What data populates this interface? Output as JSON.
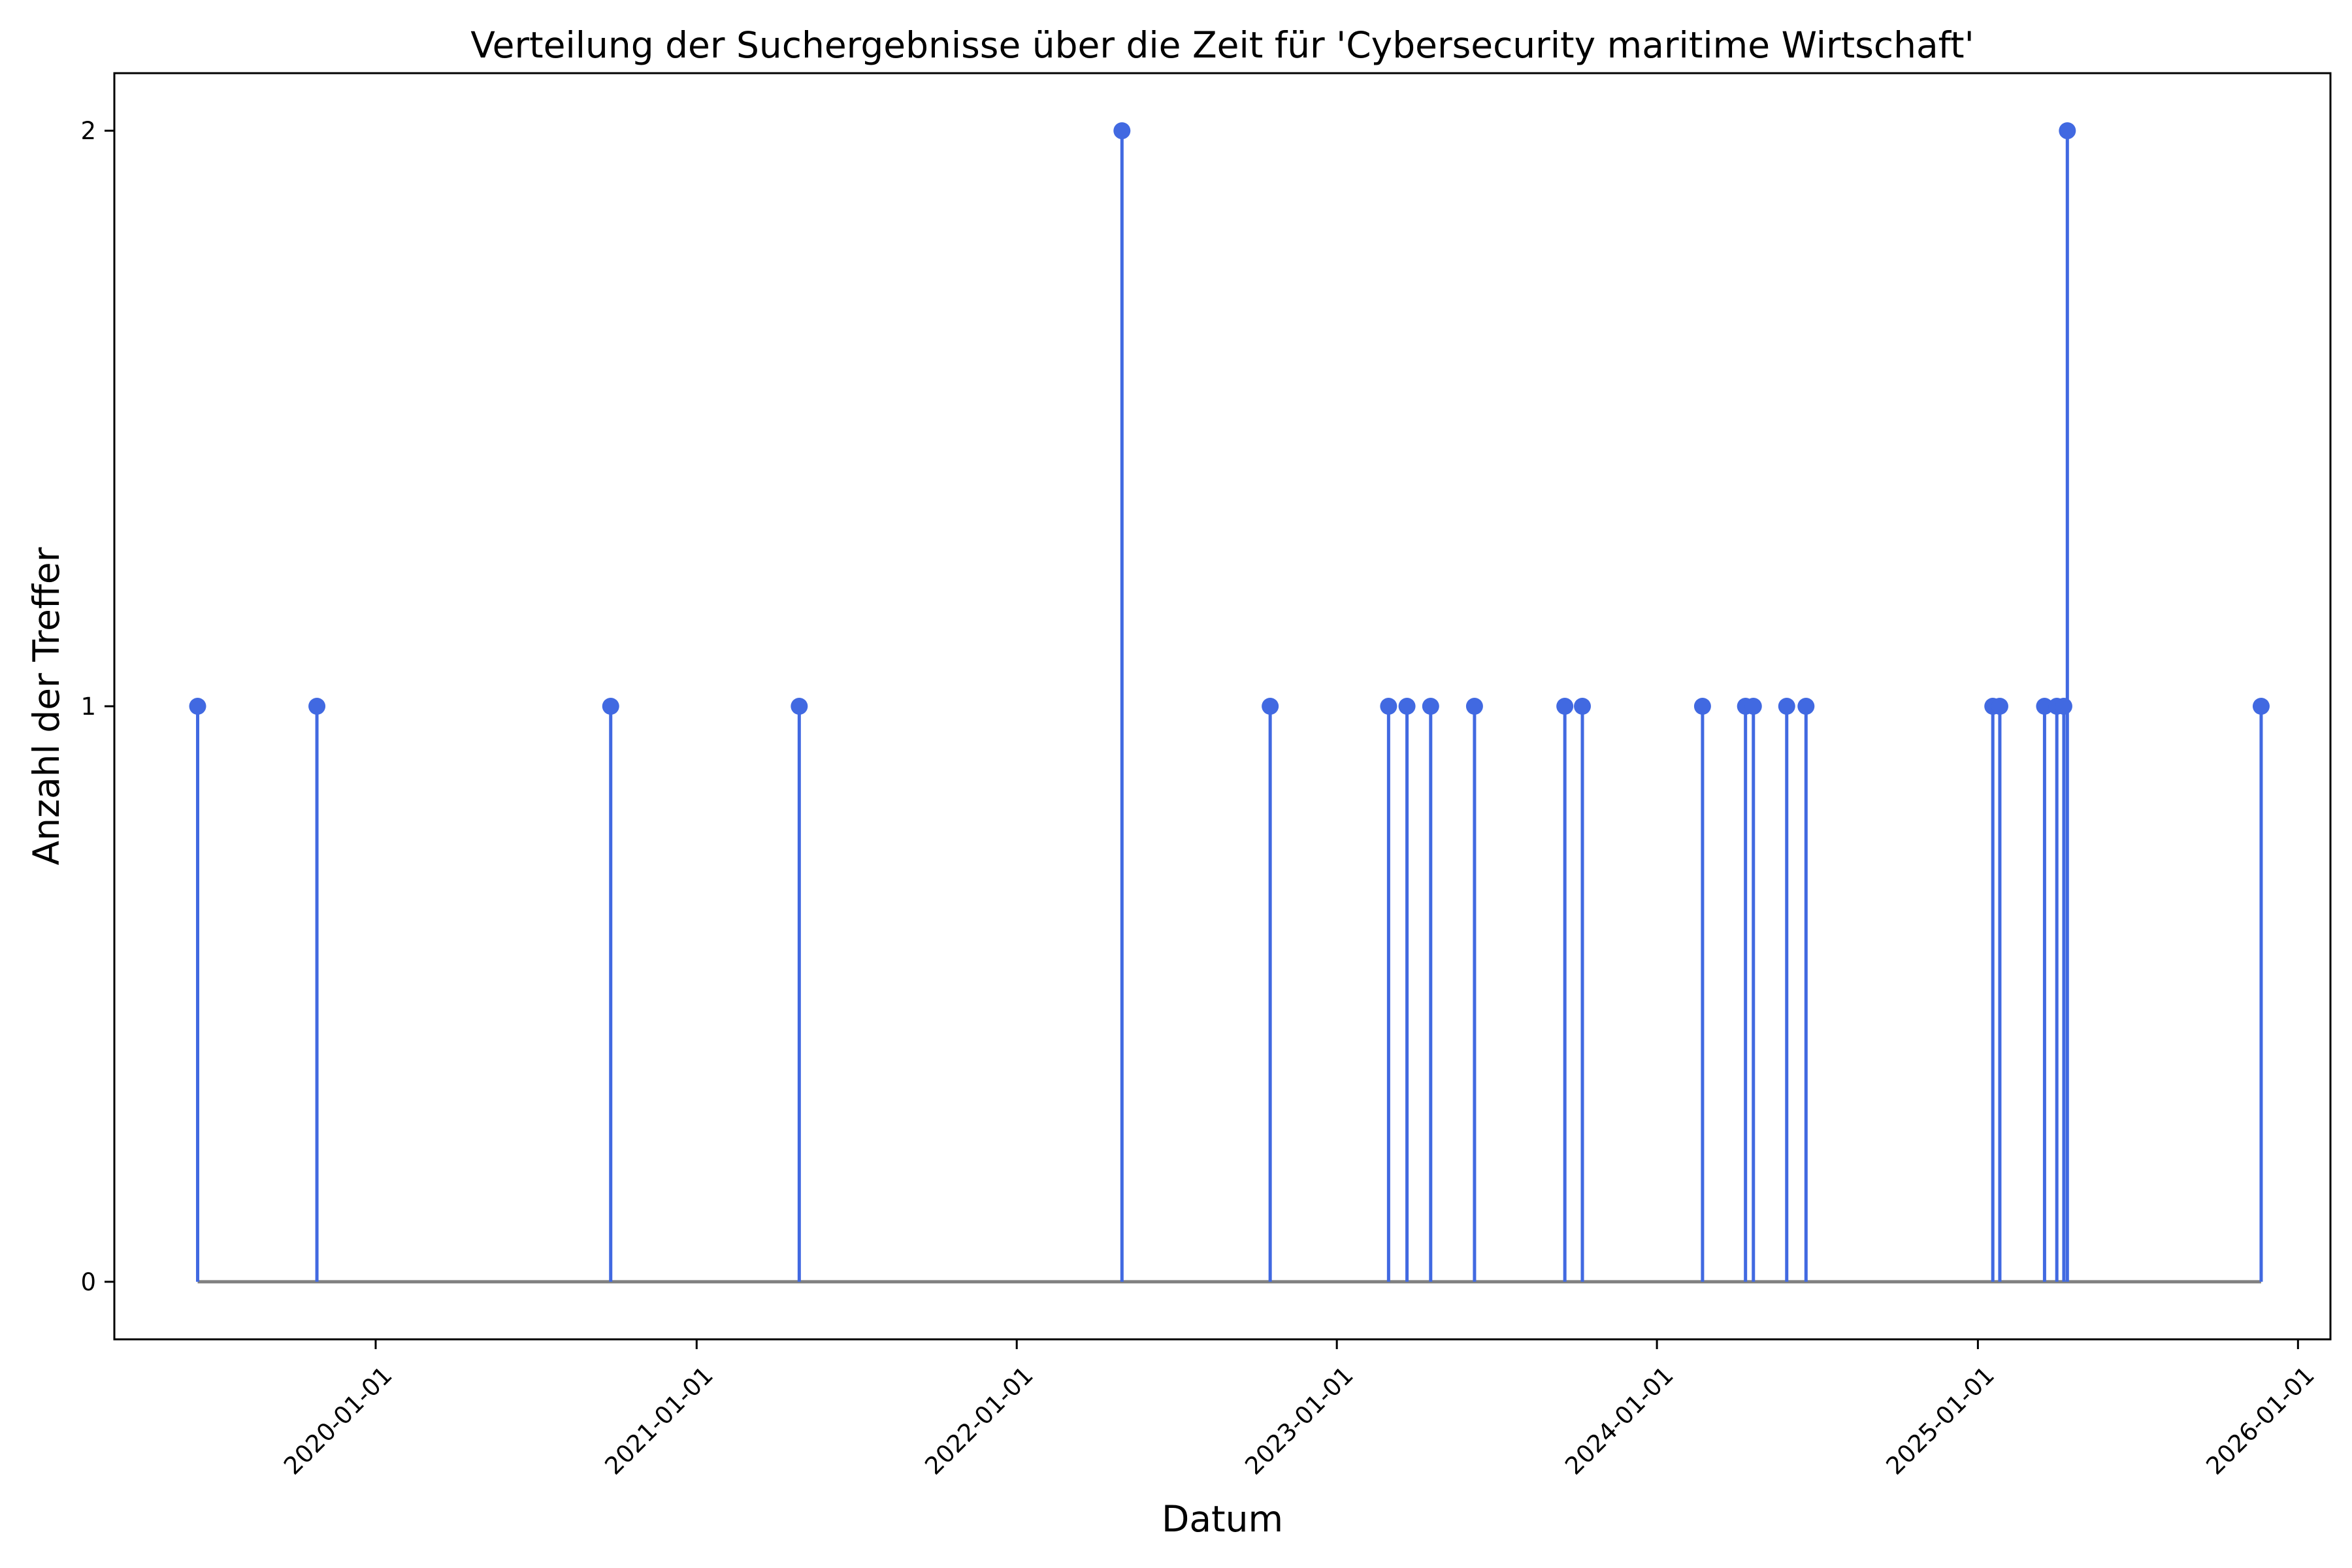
{
  "chart_data": {
    "type": "stem",
    "title": "Verteilung der Suchergebnisse über die Zeit für 'Cybersecurity maritime Wirtschaft'",
    "xlabel": "Datum",
    "ylabel": "Anzahl der Treffer",
    "xlim": [
      "2019-03-09",
      "2026-02-07"
    ],
    "ylim": [
      -0.1,
      2.1
    ],
    "x_ticks": [
      "2020-01-01",
      "2021-01-01",
      "2022-01-01",
      "2023-01-01",
      "2024-01-01",
      "2025-01-01",
      "2026-01-01"
    ],
    "y_ticks": [
      0,
      1,
      2
    ],
    "grid": false,
    "legend": "none",
    "series": [
      {
        "color": "#4169E1",
        "baseline_color": "#808080",
        "points": [
          {
            "date": "2019-06-12",
            "count": 1
          },
          {
            "date": "2019-10-26",
            "count": 1
          },
          {
            "date": "2020-09-25",
            "count": 1
          },
          {
            "date": "2021-04-28",
            "count": 1
          },
          {
            "date": "2022-05-01",
            "count": 2
          },
          {
            "date": "2022-10-17",
            "count": 1
          },
          {
            "date": "2023-03-01",
            "count": 1
          },
          {
            "date": "2023-03-22",
            "count": 1
          },
          {
            "date": "2023-04-18",
            "count": 1
          },
          {
            "date": "2023-06-07",
            "count": 1
          },
          {
            "date": "2023-09-18",
            "count": 1
          },
          {
            "date": "2023-10-08",
            "count": 1
          },
          {
            "date": "2024-02-22",
            "count": 1
          },
          {
            "date": "2024-04-11",
            "count": 1
          },
          {
            "date": "2024-04-20",
            "count": 1
          },
          {
            "date": "2024-05-28",
            "count": 1
          },
          {
            "date": "2024-06-19",
            "count": 1
          },
          {
            "date": "2025-01-18",
            "count": 1
          },
          {
            "date": "2025-01-26",
            "count": 1
          },
          {
            "date": "2025-03-18",
            "count": 1
          },
          {
            "date": "2025-04-01",
            "count": 1
          },
          {
            "date": "2025-04-09",
            "count": 1
          },
          {
            "date": "2025-04-13",
            "count": 2
          },
          {
            "date": "2025-11-20",
            "count": 1
          }
        ]
      }
    ]
  }
}
